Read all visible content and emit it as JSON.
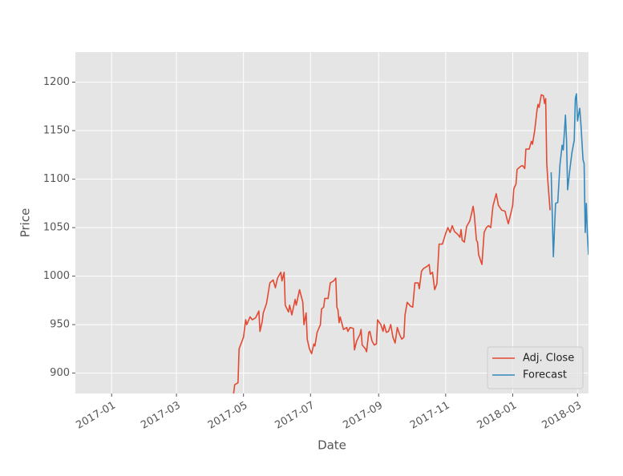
{
  "chart_data": {
    "type": "line",
    "xlabel": "Date",
    "ylabel": "Price",
    "xlim": [
      -33,
      434
    ],
    "ylim": [
      879,
      1231
    ],
    "xticks": [
      {
        "value": 0,
        "label": "2017-01"
      },
      {
        "value": 59,
        "label": "2017-03"
      },
      {
        "value": 120,
        "label": "2017-05"
      },
      {
        "value": 181,
        "label": "2017-07"
      },
      {
        "value": 243,
        "label": "2017-09"
      },
      {
        "value": 304,
        "label": "2017-11"
      },
      {
        "value": 365,
        "label": "2018-01"
      },
      {
        "value": 424,
        "label": "2018-03"
      }
    ],
    "yticks": [
      900,
      950,
      1000,
      1050,
      1100,
      1150,
      1200
    ],
    "grid": true,
    "legend": "lower right",
    "series": [
      {
        "name": "Adj. Close",
        "color": "#E24A33",
        "x": [
          110,
          112,
          115,
          116,
          120,
          122,
          123,
          126,
          128,
          131,
          134,
          135,
          137,
          138,
          141,
          144,
          147,
          149,
          151,
          154,
          155,
          157,
          158,
          161,
          162,
          164,
          167,
          168,
          171,
          174,
          175,
          177,
          178,
          180,
          182,
          184,
          185,
          187,
          190,
          191,
          193,
          194,
          197,
          199,
          202,
          204,
          205,
          206,
          207,
          208,
          211,
          214,
          215,
          217,
          220,
          221,
          223,
          226,
          227,
          228,
          231,
          232,
          234,
          235,
          237,
          239,
          241,
          242,
          245,
          247,
          248,
          250,
          252,
          254,
          256,
          258,
          260,
          262,
          264,
          266,
          267,
          269,
          272,
          274,
          276,
          279,
          280,
          282,
          284,
          287,
          289,
          290,
          292,
          294,
          296,
          298,
          301,
          304,
          306,
          308,
          310,
          312,
          315,
          317,
          318,
          319,
          321,
          323,
          326,
          329,
          330,
          332,
          333,
          334,
          337,
          339,
          341,
          343,
          345,
          347,
          350,
          352,
          355,
          358,
          360,
          361,
          364,
          365,
          366,
          368,
          369,
          372,
          374,
          376,
          377,
          380,
          382,
          383,
          385,
          387,
          388,
          389,
          391,
          393,
          394,
          395,
          396,
          397,
          399
        ],
        "values": [
          870,
          888,
          890,
          925,
          937,
          955,
          950,
          958,
          955,
          957,
          964,
          943,
          953,
          962,
          972,
          993,
          996,
          988,
          998,
          1004,
          995,
          1004,
          970,
          963,
          970,
          960,
          976,
          970,
          986,
          973,
          950,
          962,
          935,
          925,
          920,
          930,
          928,
          942,
          950,
          966,
          968,
          977,
          977,
          993,
          995,
          998,
          968,
          965,
          952,
          958,
          945,
          947,
          943,
          947,
          946,
          924,
          933,
          940,
          945,
          929,
          925,
          922,
          942,
          943,
          933,
          929,
          930,
          955,
          950,
          943,
          950,
          942,
          943,
          950,
          937,
          931,
          947,
          940,
          935,
          937,
          960,
          973,
          969,
          968,
          993,
          993,
          987,
          1005,
          1008,
          1010,
          1012,
          1002,
          1004,
          986,
          992,
          1033,
          1033,
          1044,
          1050,
          1045,
          1052,
          1046,
          1043,
          1040,
          1048,
          1037,
          1035,
          1051,
          1057,
          1072,
          1064,
          1037,
          1035,
          1022,
          1012,
          1045,
          1050,
          1052,
          1050,
          1072,
          1085,
          1073,
          1068,
          1067,
          1058,
          1054,
          1068,
          1073,
          1090,
          1095,
          1110,
          1113,
          1114,
          1111,
          1131,
          1131,
          1139,
          1136,
          1150,
          1170,
          1177,
          1174,
          1187,
          1186,
          1178,
          1183,
          1116,
          1098,
          1068
        ]
      },
      {
        "name": "Forecast",
        "color": "#348ABD",
        "x": [
          400,
          402,
          404,
          406,
          408,
          410,
          411,
          413,
          414,
          415,
          417,
          419,
          421,
          422,
          423,
          424,
          426,
          427,
          429,
          430,
          431,
          432,
          433,
          434
        ],
        "values": [
          1107,
          1020,
          1075,
          1076,
          1115,
          1135,
          1130,
          1166,
          1140,
          1089,
          1110,
          1128,
          1140,
          1183,
          1188,
          1160,
          1173,
          1158,
          1120,
          1116,
          1045,
          1075,
          1042,
          1022
        ]
      }
    ]
  }
}
